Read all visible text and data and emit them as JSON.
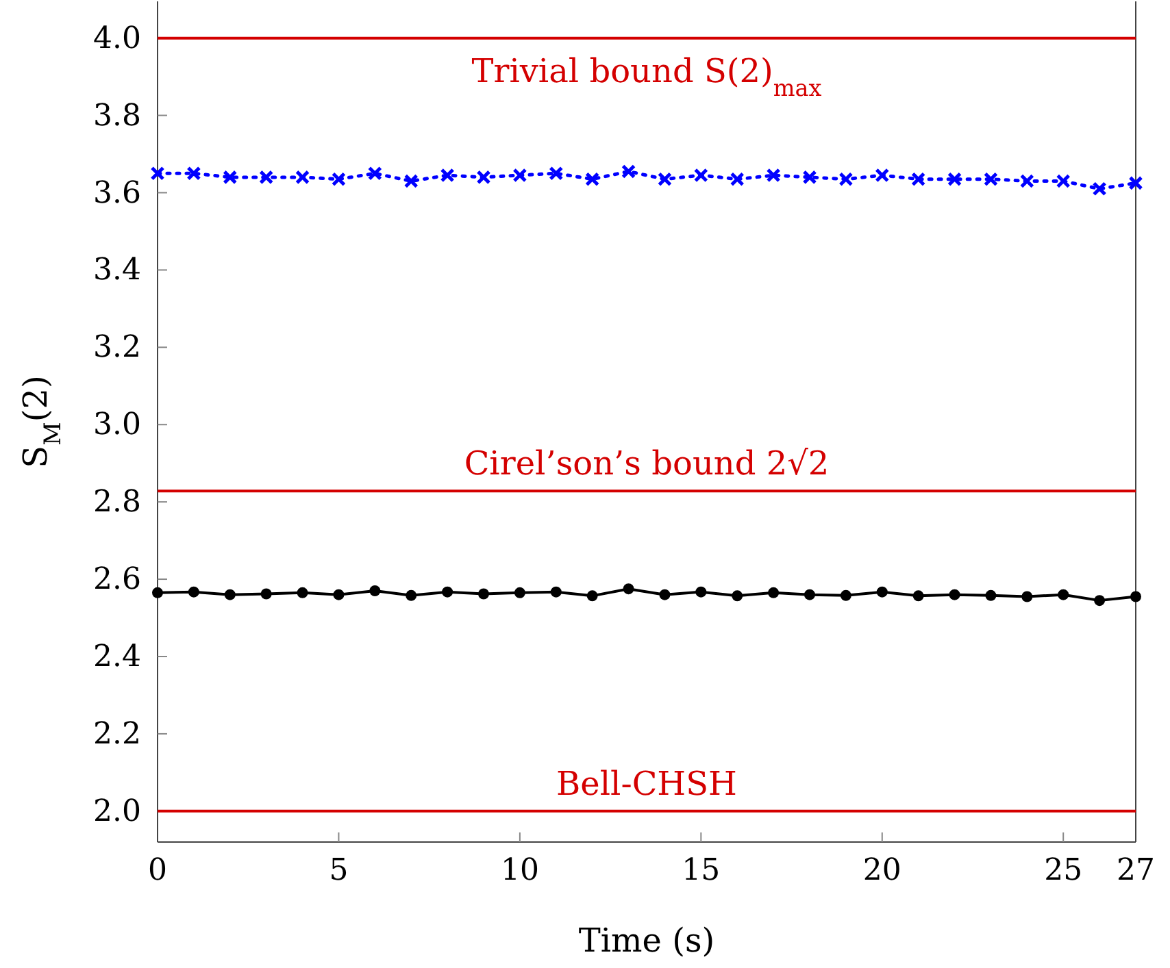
{
  "chart_data": {
    "type": "line",
    "xlabel": "Time (s)",
    "ylabel": "S$_{M}$(2)",
    "x": [
      0,
      1,
      2,
      3,
      4,
      5,
      6,
      7,
      8,
      9,
      10,
      11,
      12,
      13,
      14,
      15,
      16,
      17,
      18,
      19,
      20,
      21,
      22,
      23,
      24,
      25,
      26,
      27
    ],
    "series": [
      {
        "color": "#0000ff",
        "marker": "cross",
        "line_style": "dotted",
        "values": [
          3.65,
          3.65,
          3.64,
          3.64,
          3.64,
          3.635,
          3.65,
          3.63,
          3.645,
          3.64,
          3.645,
          3.65,
          3.635,
          3.655,
          3.635,
          3.645,
          3.635,
          3.645,
          3.64,
          3.635,
          3.645,
          3.635,
          3.635,
          3.635,
          3.63,
          3.63,
          3.61,
          3.625
        ]
      },
      {
        "color": "#000000",
        "marker": "circle",
        "line_style": "solid",
        "values": [
          2.565,
          2.567,
          2.56,
          2.562,
          2.565,
          2.56,
          2.57,
          2.558,
          2.567,
          2.562,
          2.565,
          2.567,
          2.557,
          2.575,
          2.56,
          2.567,
          2.557,
          2.565,
          2.56,
          2.558,
          2.567,
          2.557,
          2.56,
          2.558,
          2.555,
          2.56,
          2.545,
          2.555
        ]
      }
    ],
    "xlim": [
      0,
      27
    ],
    "xticks": [
      0,
      5,
      10,
      15,
      20,
      25,
      27
    ],
    "ylim": [
      1.92,
      4.095
    ],
    "yticks": [
      {
        "value": 2,
        "label": "2.0"
      },
      {
        "value": 2.2,
        "label": "2.2"
      },
      {
        "value": 2.4,
        "label": "2.4"
      },
      {
        "value": 2.6,
        "label": "2.6"
      },
      {
        "value": 2.8,
        "label": "2.8"
      },
      {
        "value": 3,
        "label": "3.0"
      },
      {
        "value": 3.2,
        "label": "3.2"
      },
      {
        "value": 3.4,
        "label": "3.4"
      },
      {
        "value": 3.6,
        "label": "3.6"
      },
      {
        "value": 3.8,
        "label": "3.8"
      },
      {
        "value": 4,
        "label": "4.0"
      }
    ],
    "ref_lines": [
      {
        "axis": "y",
        "value": 4.0,
        "label": "Trivial bound S(2)$_{max}$",
        "color": "#d40000"
      },
      {
        "axis": "y",
        "value": 2.828,
        "label": "Cirel’son’s bound 2√2",
        "color": "#d40000"
      },
      {
        "axis": "y",
        "value": 2.0,
        "label": "Bell-CHSH",
        "color": "#d40000"
      }
    ],
    "grid": false
  }
}
